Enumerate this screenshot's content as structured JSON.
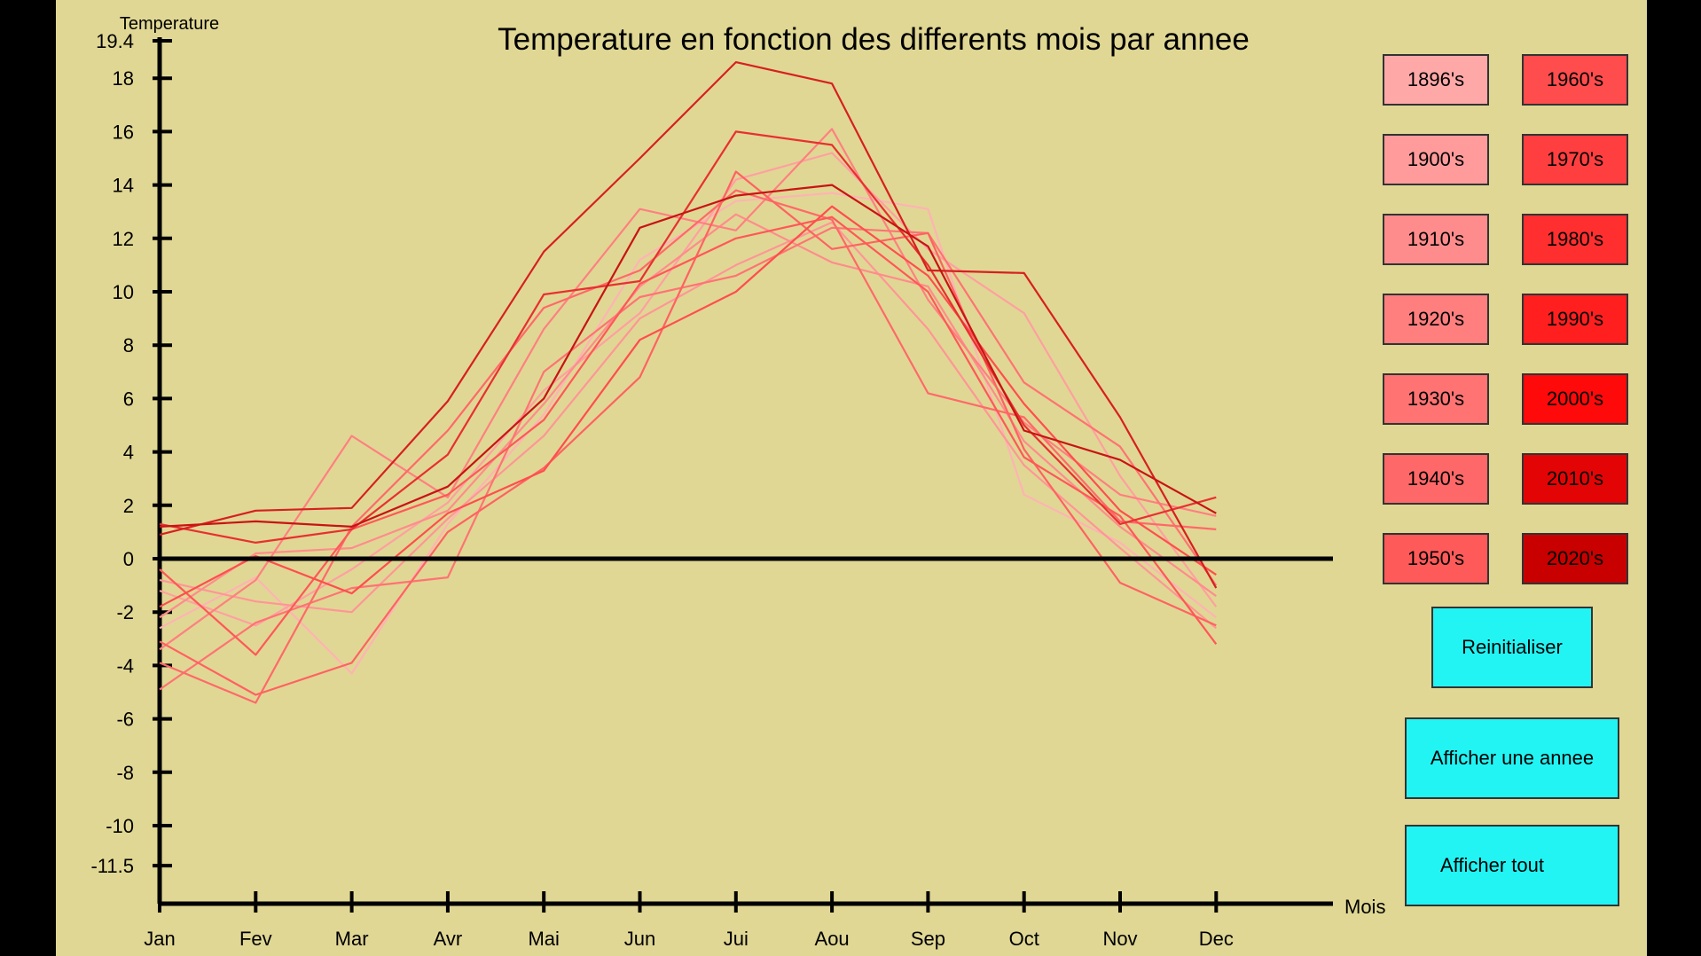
{
  "chart_data": {
    "type": "line",
    "title": "Temperature en fonction des differents mois par annee",
    "ylabel": "Temperature",
    "xlabel": "Mois",
    "categories": [
      "Jan",
      "Fev",
      "Mar",
      "Avr",
      "Mai",
      "Jun",
      "Jui",
      "Aou",
      "Sep",
      "Oct",
      "Nov",
      "Dec"
    ],
    "ylim": [
      -11.5,
      19.4
    ],
    "yticks": [
      "19.4",
      "18",
      "16",
      "14",
      "12",
      "10",
      "8",
      "6",
      "4",
      "2",
      "0",
      "-2",
      "-4",
      "-6",
      "-8",
      "-10",
      "-11.5"
    ],
    "grid": false,
    "zero_line": true,
    "series": [
      {
        "color": "#ffb3b3",
        "values": [
          -2.6,
          -0.7,
          -4.3,
          1.3,
          5.4,
          11.2,
          13.4,
          13.7,
          13.1,
          2.4,
          0.6,
          -2.2
        ]
      },
      {
        "color": "#ffa0a0",
        "values": [
          -1.2,
          -2.5,
          -0.4,
          2.1,
          6.3,
          9.2,
          14.2,
          15.2,
          11.6,
          9.2,
          3.1,
          -1.8
        ]
      },
      {
        "color": "#ff9696",
        "values": [
          -0.8,
          -1.6,
          -2.0,
          1.5,
          4.6,
          9.0,
          11.0,
          12.6,
          8.6,
          3.5,
          0.4,
          -2.6
        ]
      },
      {
        "color": "#ff8c8c",
        "values": [
          -2.2,
          0.2,
          0.4,
          1.8,
          5.8,
          10.2,
          12.9,
          11.1,
          10.2,
          4.4,
          1.2,
          -1.4
        ]
      },
      {
        "color": "#ff8080",
        "values": [
          -3.4,
          -0.8,
          4.6,
          2.3,
          8.6,
          13.1,
          12.3,
          16.1,
          9.7,
          5.1,
          2.4,
          1.6
        ]
      },
      {
        "color": "#ff7373",
        "values": [
          -4.9,
          -2.4,
          -1.1,
          -0.7,
          7.0,
          9.8,
          10.6,
          12.4,
          12.2,
          6.6,
          4.2,
          -1.0
        ]
      },
      {
        "color": "#ff6969",
        "values": [
          -3.9,
          -5.4,
          1.2,
          4.8,
          9.4,
          10.8,
          13.8,
          12.7,
          6.2,
          5.3,
          1.4,
          1.1
        ]
      },
      {
        "color": "#ff6262",
        "values": [
          -3.1,
          -5.1,
          -3.9,
          1.0,
          3.4,
          6.8,
          14.5,
          11.6,
          12.2,
          4.1,
          -0.9,
          -2.5
        ]
      },
      {
        "color": "#ff5858",
        "values": [
          -0.4,
          -3.6,
          1.1,
          2.4,
          5.2,
          10.3,
          12.0,
          12.8,
          10.0,
          3.8,
          1.6,
          -3.2
        ]
      },
      {
        "color": "#ff4e4e",
        "values": [
          -1.8,
          0.1,
          -1.3,
          1.7,
          3.3,
          8.2,
          10.0,
          13.2,
          10.6,
          5.8,
          1.8,
          -0.6
        ]
      },
      {
        "color": "#e83030",
        "values": [
          1.3,
          0.6,
          1.1,
          3.9,
          9.9,
          10.4,
          16.0,
          15.5,
          11.0,
          5.0,
          1.3,
          2.3
        ]
      },
      {
        "color": "#d62020",
        "values": [
          0.9,
          1.8,
          1.9,
          5.9,
          11.5,
          15.0,
          18.6,
          17.8,
          10.8,
          10.7,
          5.3,
          -1.1
        ]
      },
      {
        "color": "#c81414",
        "values": [
          1.2,
          1.4,
          1.2,
          2.7,
          6.0,
          12.4,
          13.6,
          14.0,
          11.7,
          4.8,
          3.7,
          1.7
        ]
      }
    ]
  },
  "legend_buttons": [
    {
      "label": "1896's",
      "color": "#ffa8a8"
    },
    {
      "label": "1900's",
      "color": "#ff9b9b"
    },
    {
      "label": "1910's",
      "color": "#ff8c8c"
    },
    {
      "label": "1920's",
      "color": "#ff7f7f"
    },
    {
      "label": "1930's",
      "color": "#ff7373"
    },
    {
      "label": "1940's",
      "color": "#ff6868"
    },
    {
      "label": "1950's",
      "color": "#ff5a5a"
    },
    {
      "label": "1960's",
      "color": "#ff4c4c"
    },
    {
      "label": "1970's",
      "color": "#ff3f3f"
    },
    {
      "label": "1980's",
      "color": "#ff2f2f"
    },
    {
      "label": "1990's",
      "color": "#ff1f1f"
    },
    {
      "label": "2000's",
      "color": "#ff0a0a"
    },
    {
      "label": "2010's",
      "color": "#e30505"
    },
    {
      "label": "2020's",
      "color": "#c80000"
    }
  ],
  "actions": {
    "reset": "Reinitialiser",
    "show_year": "Afficher une annee",
    "show_all": "Afficher tout"
  },
  "colors": {
    "background": "#e0d794",
    "button_cyan": "#22f4f4",
    "axis": "#000000"
  }
}
